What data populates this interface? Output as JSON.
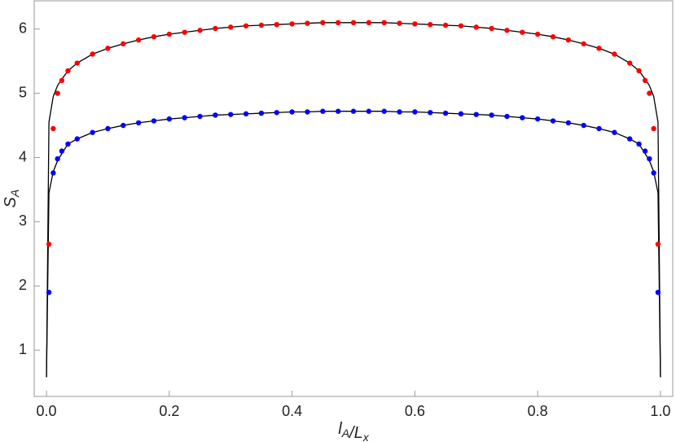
{
  "chart_data": {
    "type": "scatter",
    "xlabel": [
      {
        "text": "l",
        "sub": "A"
      },
      {
        "text": "/L",
        "sub": "x"
      }
    ],
    "ylabel": [
      {
        "text": "S",
        "sub": "A"
      }
    ],
    "xlim": [
      -0.02,
      1.02
    ],
    "ylim": [
      0.28,
      6.44
    ],
    "xticks": [
      {
        "value": 0,
        "label": "0.0"
      },
      0.2,
      0.4,
      0.6,
      0.8,
      {
        "value": 1,
        "label": "1.0"
      }
    ],
    "yticks": [
      1,
      2,
      3,
      4,
      5,
      6
    ],
    "series": [
      {
        "type": "line",
        "color": "#000000",
        "x": [
          0,
          0.004,
          0.011,
          0.018,
          0.025,
          0.035,
          0.05,
          0.075,
          0.1,
          0.125,
          0.15,
          0.175,
          0.2,
          0.225,
          0.25,
          0.275,
          0.3,
          0.325,
          0.35,
          0.375,
          0.4,
          0.425,
          0.45,
          0.475,
          0.5,
          0.525,
          0.55,
          0.575,
          0.6,
          0.625,
          0.65,
          0.675,
          0.7,
          0.725,
          0.75,
          0.775,
          0.8,
          0.825,
          0.85,
          0.875,
          0.9,
          0.925,
          0.95,
          0.965,
          0.975,
          0.982,
          0.989,
          0.996,
          1
        ],
        "values": [
          0.58,
          4.55,
          4.95,
          5.12,
          5.22,
          5.35,
          5.47,
          5.61,
          5.7,
          5.77,
          5.83,
          5.88,
          5.92,
          5.95,
          5.98,
          6.01,
          6.03,
          6.05,
          6.06,
          6.07,
          6.08,
          6.09,
          6.1,
          6.1,
          6.1,
          6.1,
          6.1,
          6.09,
          6.08,
          6.07,
          6.06,
          6.05,
          6.03,
          6.01,
          5.98,
          5.95,
          5.92,
          5.88,
          5.83,
          5.77,
          5.7,
          5.61,
          5.47,
          5.35,
          5.22,
          5.12,
          4.95,
          4.55,
          0.58
        ]
      },
      {
        "type": "line",
        "color": "#000000",
        "x": [
          0,
          0.004,
          0.011,
          0.018,
          0.025,
          0.035,
          0.05,
          0.075,
          0.1,
          0.125,
          0.15,
          0.175,
          0.2,
          0.225,
          0.25,
          0.275,
          0.3,
          0.325,
          0.35,
          0.375,
          0.4,
          0.425,
          0.45,
          0.475,
          0.5,
          0.525,
          0.55,
          0.575,
          0.6,
          0.625,
          0.65,
          0.675,
          0.7,
          0.725,
          0.75,
          0.775,
          0.8,
          0.825,
          0.85,
          0.875,
          0.9,
          0.925,
          0.95,
          0.965,
          0.975,
          0.982,
          0.989,
          0.996,
          1
        ],
        "values": [
          0.58,
          3.45,
          3.78,
          3.95,
          4.06,
          4.21,
          4.29,
          4.39,
          4.45,
          4.5,
          4.54,
          4.57,
          4.6,
          4.62,
          4.64,
          4.66,
          4.67,
          4.68,
          4.69,
          4.7,
          4.71,
          4.71,
          4.72,
          4.72,
          4.72,
          4.72,
          4.72,
          4.71,
          4.71,
          4.7,
          4.69,
          4.68,
          4.67,
          4.66,
          4.64,
          4.62,
          4.6,
          4.57,
          4.54,
          4.5,
          4.45,
          4.39,
          4.29,
          4.21,
          4.06,
          3.95,
          3.78,
          3.45,
          0.58
        ]
      },
      {
        "type": "scatter",
        "color": "#ff0000",
        "x": [
          0.004,
          0.011,
          0.018,
          0.025,
          0.035,
          0.05,
          0.075,
          0.1,
          0.125,
          0.15,
          0.175,
          0.2,
          0.225,
          0.25,
          0.275,
          0.3,
          0.325,
          0.35,
          0.375,
          0.4,
          0.425,
          0.45,
          0.475,
          0.5,
          0.525,
          0.55,
          0.575,
          0.6,
          0.625,
          0.65,
          0.675,
          0.7,
          0.725,
          0.75,
          0.775,
          0.8,
          0.825,
          0.85,
          0.875,
          0.9,
          0.925,
          0.95,
          0.965,
          0.975,
          0.982,
          0.989,
          0.996
        ],
        "values": [
          2.65,
          4.45,
          5.0,
          5.2,
          5.35,
          5.47,
          5.61,
          5.7,
          5.77,
          5.83,
          5.88,
          5.92,
          5.95,
          5.98,
          6.01,
          6.03,
          6.05,
          6.06,
          6.07,
          6.08,
          6.09,
          6.1,
          6.1,
          6.1,
          6.1,
          6.1,
          6.09,
          6.08,
          6.07,
          6.06,
          6.05,
          6.03,
          6.01,
          5.98,
          5.95,
          5.92,
          5.88,
          5.83,
          5.77,
          5.7,
          5.61,
          5.47,
          5.35,
          5.2,
          5.0,
          4.45,
          2.65
        ]
      },
      {
        "type": "scatter",
        "color": "#0000ff",
        "x": [
          0.004,
          0.011,
          0.018,
          0.025,
          0.035,
          0.05,
          0.075,
          0.1,
          0.125,
          0.15,
          0.175,
          0.2,
          0.225,
          0.25,
          0.275,
          0.3,
          0.325,
          0.35,
          0.375,
          0.4,
          0.425,
          0.45,
          0.475,
          0.5,
          0.525,
          0.55,
          0.575,
          0.6,
          0.625,
          0.65,
          0.675,
          0.7,
          0.725,
          0.75,
          0.775,
          0.8,
          0.825,
          0.85,
          0.875,
          0.9,
          0.925,
          0.95,
          0.965,
          0.975,
          0.982,
          0.989,
          0.996
        ],
        "values": [
          1.9,
          3.76,
          3.98,
          4.1,
          4.21,
          4.29,
          4.39,
          4.45,
          4.5,
          4.54,
          4.57,
          4.6,
          4.62,
          4.64,
          4.66,
          4.67,
          4.68,
          4.69,
          4.7,
          4.71,
          4.71,
          4.72,
          4.72,
          4.72,
          4.72,
          4.72,
          4.71,
          4.71,
          4.7,
          4.69,
          4.68,
          4.67,
          4.66,
          4.64,
          4.62,
          4.6,
          4.57,
          4.54,
          4.5,
          4.45,
          4.39,
          4.29,
          4.21,
          4.1,
          3.98,
          3.76,
          1.9
        ]
      }
    ]
  }
}
